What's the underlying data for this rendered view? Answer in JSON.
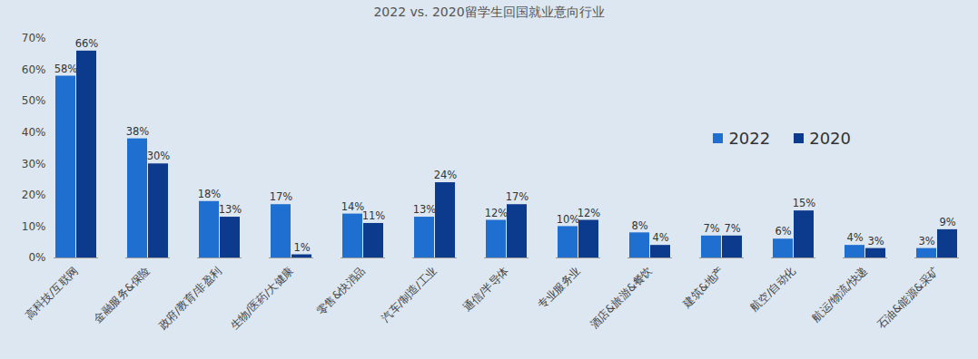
{
  "chart_data": {
    "type": "bar",
    "title": "2022 vs. 2020留学生回国就业意向行业",
    "categories": [
      "高科技/互联网",
      "金融服务&保险",
      "政府/教育/非盈利",
      "生物/医药/大健康",
      "零售&快消品",
      "汽车/制造/工业",
      "通信/半导体",
      "专业服务业",
      "酒店&旅游&餐饮",
      "建筑&地产",
      "航空/自动化",
      "航运/物流/快递",
      "石油&能源&采矿"
    ],
    "series": [
      {
        "name": "2022",
        "color": "#1e6fd0",
        "values": [
          58,
          38,
          18,
          17,
          14,
          13,
          12,
          10,
          8,
          7,
          6,
          4,
          3
        ],
        "value_labels": [
          "58%",
          "38%",
          "18%",
          "17%",
          "14%",
          "13%",
          "12%",
          "10%",
          "8%",
          "7%",
          "6%",
          "4%",
          "3%"
        ]
      },
      {
        "name": "2020",
        "color": "#0c3a8c",
        "values": [
          66,
          30,
          13,
          1,
          11,
          24,
          17,
          12,
          4,
          7,
          15,
          3,
          9
        ],
        "value_labels": [
          "66%",
          "30%",
          "13%",
          "1%",
          "11%",
          "24%",
          "17%",
          "12%",
          "4%",
          "7%",
          "15%",
          "3%",
          "9%"
        ]
      }
    ],
    "ylim": [
      0,
      70
    ],
    "yticks": [
      {
        "value": 0,
        "label": "0%"
      },
      {
        "value": 10,
        "label": "10%"
      },
      {
        "value": 20,
        "label": "20%"
      },
      {
        "value": 30,
        "label": "30%"
      },
      {
        "value": 40,
        "label": "40%"
      },
      {
        "value": 50,
        "label": "50%"
      },
      {
        "value": 60,
        "label": "60%"
      },
      {
        "value": 70,
        "label": "70%"
      }
    ],
    "grid": false,
    "data_labels": true,
    "legend": "right"
  }
}
